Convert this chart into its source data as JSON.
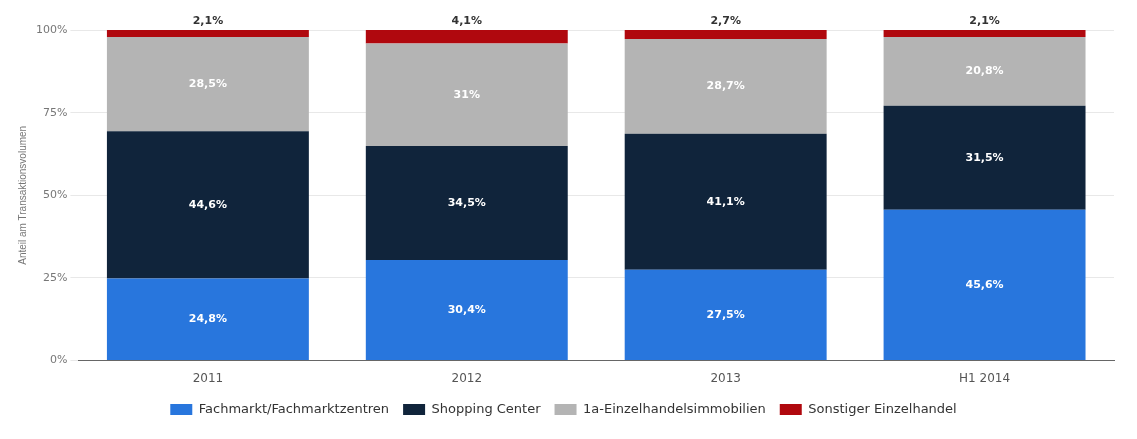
{
  "chart_data": {
    "type": "bar",
    "stacked": true,
    "ylabel": "Anteil am Transaktionsvolumen",
    "categories": [
      "2011",
      "2012",
      "2013",
      "H1 2014"
    ],
    "series": [
      {
        "name": "Fachmarkt/Fachmarktzentren",
        "color": "#2876dd",
        "values": [
          24.8,
          30.4,
          27.5,
          45.6
        ],
        "value_labels": [
          "24,8%",
          "30,4%",
          "27,5%",
          "45,6%"
        ]
      },
      {
        "name": "Shopping Center",
        "color": "#10243b",
        "values": [
          44.6,
          34.5,
          41.1,
          31.5
        ],
        "value_labels": [
          "44,6%",
          "34,5%",
          "41,1%",
          "31,5%"
        ]
      },
      {
        "name": "1a-Einzelhandelsimmobilien",
        "color": "#b4b4b4",
        "values": [
          28.5,
          31,
          28.7,
          20.8
        ],
        "value_labels": [
          "28,5%",
          "31%",
          "28,7%",
          "20,8%"
        ]
      },
      {
        "name": "Sonstiger Einzelhandel",
        "color": "#b0080e",
        "values": [
          2.1,
          4.1,
          2.7,
          2.1
        ],
        "value_labels": [
          "2,1%",
          "4,1%",
          "2,7%",
          "2,1%"
        ]
      }
    ],
    "ylim": [
      0,
      100
    ],
    "yticks": [
      {
        "value": 0,
        "label": "0%"
      },
      {
        "value": 25,
        "label": "25%"
      },
      {
        "value": 50,
        "label": "50%"
      },
      {
        "value": 75,
        "label": "75%"
      },
      {
        "value": 100,
        "label": "100%"
      }
    ],
    "grid": "y",
    "legend": "bottom"
  }
}
